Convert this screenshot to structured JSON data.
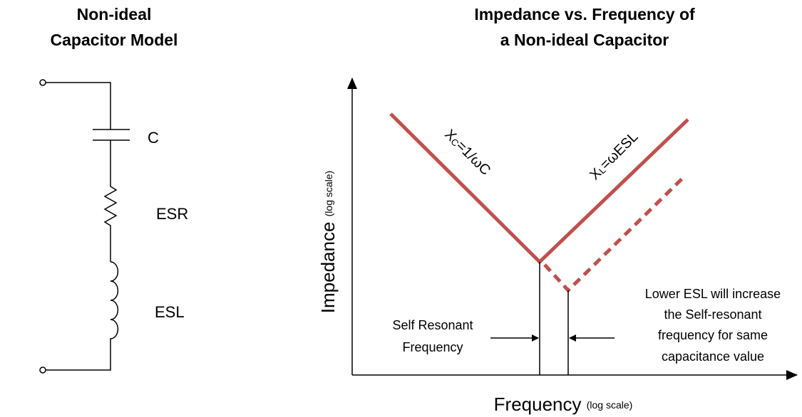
{
  "left_title": [
    "Non-ideal",
    "Capacitor Model"
  ],
  "components": [
    "C",
    "ESR",
    "ESL"
  ],
  "right_title": [
    "Impedance vs. Frequency of",
    "a Non-ideal Capacitor"
  ],
  "curves": [
    {
      "main": "X",
      "sub": "C",
      "rest": "=1/ωC"
    },
    {
      "main": "X",
      "sub": "L",
      "rest": "=ωESL"
    }
  ],
  "y_axis": {
    "label": "Impedance",
    "note": "(log scale)"
  },
  "x_axis": {
    "label": "Frequency",
    "note": "(log scale)"
  },
  "annotations": {
    "self_resonant": [
      "Self Resonant",
      "Frequency"
    ],
    "lower_esl": [
      "Lower ESL will increase",
      "the Self-resonant",
      "frequency for same",
      "capacitance value"
    ]
  }
}
